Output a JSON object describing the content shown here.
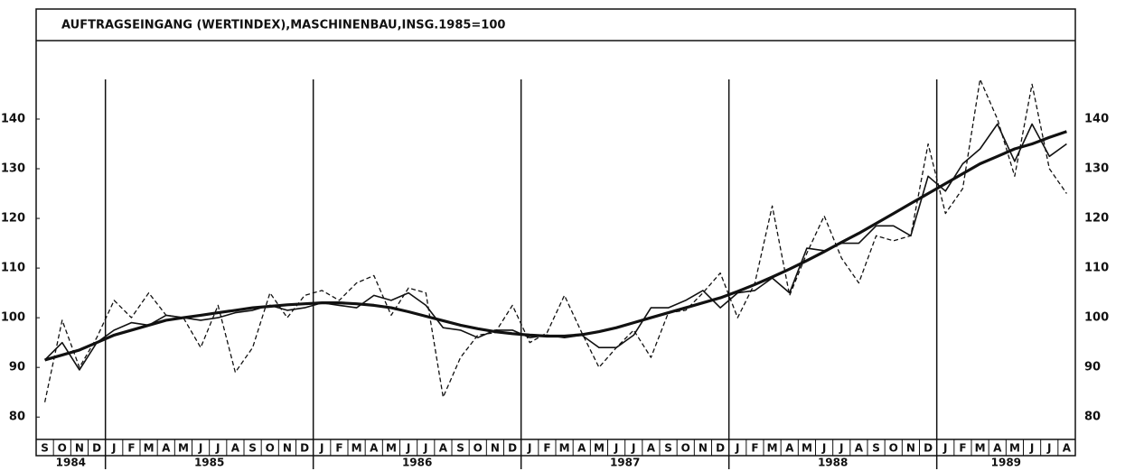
{
  "chart_data": {
    "type": "line",
    "title": "AUFTRAGSEINGANG (WERTINDEX),MASCHINENBAU,INSG.1985=100",
    "categories": [
      "S",
      "O",
      "N",
      "D",
      "J",
      "F",
      "M",
      "A",
      "M",
      "J",
      "J",
      "A",
      "S",
      "O",
      "N",
      "D",
      "J",
      "F",
      "M",
      "A",
      "M",
      "J",
      "J",
      "A",
      "S",
      "O",
      "N",
      "D",
      "J",
      "F",
      "M",
      "A",
      "M",
      "J",
      "J",
      "A",
      "S",
      "O",
      "N",
      "D",
      "J",
      "F",
      "M",
      "A",
      "M",
      "J",
      "J",
      "A",
      "S",
      "O",
      "N",
      "D",
      "J",
      "F",
      "M",
      "A",
      "M",
      "J",
      "J",
      "A"
    ],
    "years": [
      "1984",
      "1985",
      "1986",
      "1987",
      "1988",
      "1989"
    ],
    "series": [
      {
        "color": "#111",
        "dash": true,
        "width": 1.3,
        "values": [
          83,
          99.5,
          90,
          96,
          103.5,
          100,
          105,
          100.5,
          100,
          94,
          102.5,
          89,
          94,
          105,
          100,
          104.5,
          105.5,
          103.5,
          107,
          108.5,
          100.5,
          106,
          105,
          84,
          92,
          96.5,
          97,
          102.5,
          95,
          97,
          104.5,
          97,
          90,
          94,
          97.5,
          92,
          101,
          101.5,
          105,
          109,
          100,
          107,
          122.5,
          104.5,
          113,
          120.5,
          112,
          107,
          116.5,
          115.5,
          116.5,
          135,
          121,
          126,
          148,
          140,
          128.5,
          147,
          130,
          125
        ]
      },
      {
        "color": "#111",
        "dash": false,
        "width": 1.6,
        "values": [
          91.5,
          95,
          89.5,
          95,
          97.5,
          99,
          98.5,
          100.5,
          100,
          99.5,
          100,
          101,
          101.5,
          102.5,
          101.5,
          102,
          103,
          102.5,
          102,
          104.5,
          103.5,
          105,
          102.5,
          98,
          97.5,
          96,
          97.5,
          97.5,
          96,
          96.5,
          96,
          96.5,
          94,
          94,
          96.5,
          102,
          102,
          103.5,
          105.5,
          102,
          105,
          105.5,
          108,
          105,
          114,
          113.5,
          115,
          115,
          118.5,
          118.5,
          116.5,
          128.5,
          125.5,
          131,
          134,
          139,
          131.5,
          139,
          132.5,
          135
        ]
      },
      {
        "color": "#111",
        "dash": false,
        "width": 3.2,
        "values": [
          91.5,
          92.5,
          93.5,
          95,
          96.5,
          97.5,
          98.5,
          99.5,
          100,
          100.5,
          101,
          101.5,
          102,
          102.3,
          102.6,
          102.8,
          103,
          103,
          102.8,
          102.5,
          102,
          101.2,
          100.3,
          99.4,
          98.5,
          97.8,
          97.2,
          96.8,
          96.5,
          96.3,
          96.3,
          96.6,
          97.2,
          98,
          99,
          100,
          101,
          102,
          103,
          104,
          105.3,
          106.7,
          108.2,
          109.8,
          111.5,
          113.3,
          115.2,
          117,
          119,
          121,
          123,
          125,
          127,
          129,
          131,
          132.5,
          134,
          135,
          136.3,
          137.5
        ]
      }
    ],
    "ylim": [
      75.5,
      155.8
    ],
    "yticks": [
      80,
      90,
      100,
      110,
      120,
      130,
      140
    ]
  }
}
